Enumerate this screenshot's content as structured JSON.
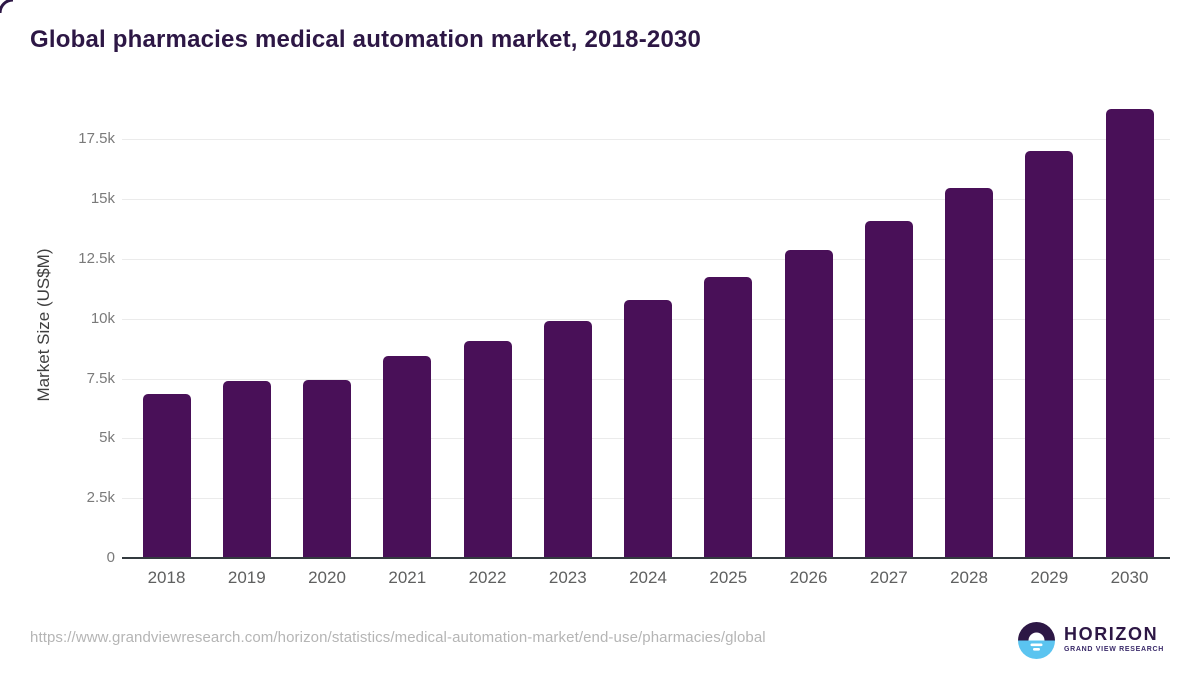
{
  "page": {
    "title": "Global pharmacies medical automation market, 2018-2030",
    "source_url": "https://www.grandviewresearch.com/horizon/statistics/medical-automation-market/end-use/pharmacies/global"
  },
  "logo": {
    "brand": "HORIZON",
    "sub_brand": "GRAND VIEW RESEARCH",
    "icon": "sun-over-horizon-icon"
  },
  "colors": {
    "bar": "#491058",
    "title_text": "#2d1745",
    "axis_title_text": "#3f3f3f",
    "tick_label_text": "#7a7a7a",
    "year_label_text": "#5f6060",
    "gridline": "#ebebeb",
    "axis_line": "#333a3f",
    "source_url_text": "#b5b5b5",
    "logo_blue": "#5bc4f0",
    "logo_purple": "#2d1745"
  },
  "chart_data": {
    "type": "bar",
    "title": "Global pharmacies medical automation market, 2018-2030",
    "categories": [
      "2018",
      "2019",
      "2020",
      "2021",
      "2022",
      "2023",
      "2024",
      "2025",
      "2026",
      "2027",
      "2028",
      "2029",
      "2030"
    ],
    "values": [
      6850,
      7390,
      7440,
      8450,
      9080,
      9900,
      10770,
      11760,
      12860,
      14080,
      15460,
      17020,
      18780
    ],
    "xlabel": "",
    "ylabel": "Market Size (US$M)",
    "ylim": [
      0,
      19150
    ],
    "yticks": [
      0,
      2500,
      5000,
      7500,
      10000,
      12500,
      15000,
      17500
    ],
    "ytick_labels": [
      "0",
      "2.5k",
      "5k",
      "7.5k",
      "10k",
      "12.5k",
      "15k",
      "17.5k"
    ],
    "grid": true,
    "legend": false
  }
}
